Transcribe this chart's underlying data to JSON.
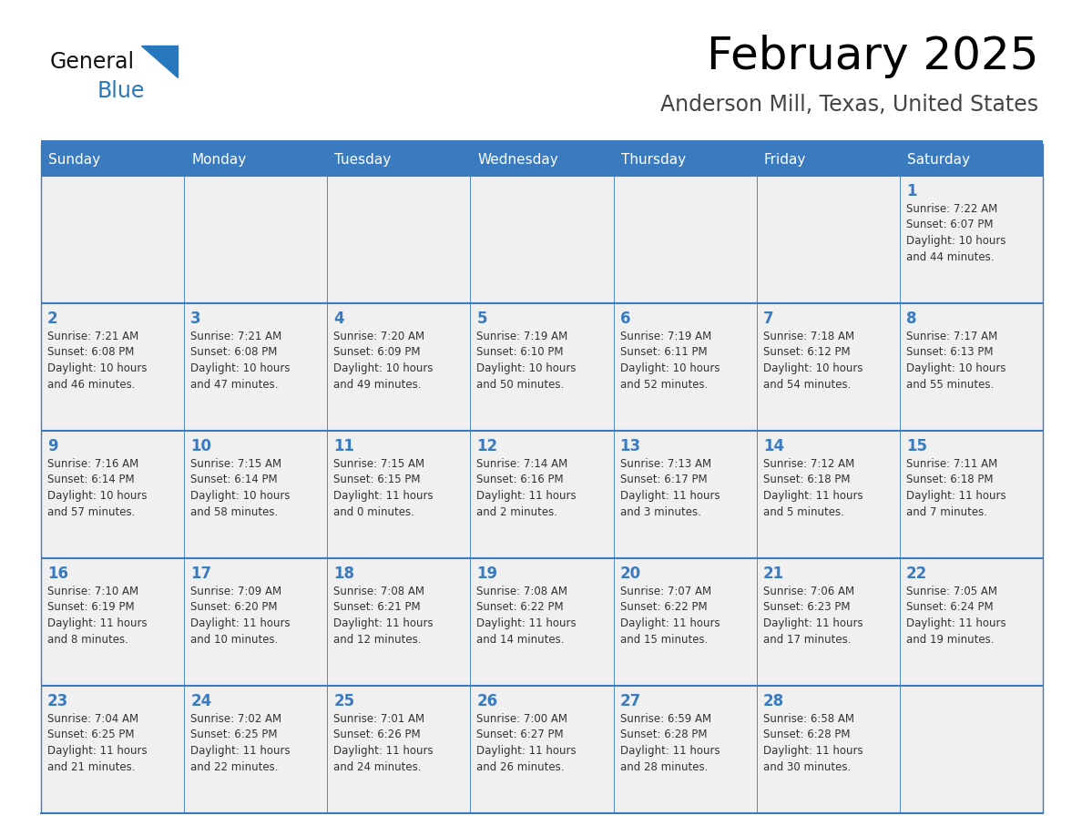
{
  "title": "February 2025",
  "subtitle": "Anderson Mill, Texas, United States",
  "days_of_week": [
    "Sunday",
    "Monday",
    "Tuesday",
    "Wednesday",
    "Thursday",
    "Friday",
    "Saturday"
  ],
  "header_bg": "#3a7bbf",
  "header_text": "#ffffff",
  "cell_bg": "#f0f0f0",
  "day_num_color": "#3a7bbf",
  "text_color": "#333333",
  "border_color": "#3a7bbf",
  "logo_general_color": "#111111",
  "logo_blue_color": "#2878be",
  "weeks": [
    [
      {
        "day": null,
        "info": null
      },
      {
        "day": null,
        "info": null
      },
      {
        "day": null,
        "info": null
      },
      {
        "day": null,
        "info": null
      },
      {
        "day": null,
        "info": null
      },
      {
        "day": null,
        "info": null
      },
      {
        "day": 1,
        "info": "Sunrise: 7:22 AM\nSunset: 6:07 PM\nDaylight: 10 hours\nand 44 minutes."
      }
    ],
    [
      {
        "day": 2,
        "info": "Sunrise: 7:21 AM\nSunset: 6:08 PM\nDaylight: 10 hours\nand 46 minutes."
      },
      {
        "day": 3,
        "info": "Sunrise: 7:21 AM\nSunset: 6:08 PM\nDaylight: 10 hours\nand 47 minutes."
      },
      {
        "day": 4,
        "info": "Sunrise: 7:20 AM\nSunset: 6:09 PM\nDaylight: 10 hours\nand 49 minutes."
      },
      {
        "day": 5,
        "info": "Sunrise: 7:19 AM\nSunset: 6:10 PM\nDaylight: 10 hours\nand 50 minutes."
      },
      {
        "day": 6,
        "info": "Sunrise: 7:19 AM\nSunset: 6:11 PM\nDaylight: 10 hours\nand 52 minutes."
      },
      {
        "day": 7,
        "info": "Sunrise: 7:18 AM\nSunset: 6:12 PM\nDaylight: 10 hours\nand 54 minutes."
      },
      {
        "day": 8,
        "info": "Sunrise: 7:17 AM\nSunset: 6:13 PM\nDaylight: 10 hours\nand 55 minutes."
      }
    ],
    [
      {
        "day": 9,
        "info": "Sunrise: 7:16 AM\nSunset: 6:14 PM\nDaylight: 10 hours\nand 57 minutes."
      },
      {
        "day": 10,
        "info": "Sunrise: 7:15 AM\nSunset: 6:14 PM\nDaylight: 10 hours\nand 58 minutes."
      },
      {
        "day": 11,
        "info": "Sunrise: 7:15 AM\nSunset: 6:15 PM\nDaylight: 11 hours\nand 0 minutes."
      },
      {
        "day": 12,
        "info": "Sunrise: 7:14 AM\nSunset: 6:16 PM\nDaylight: 11 hours\nand 2 minutes."
      },
      {
        "day": 13,
        "info": "Sunrise: 7:13 AM\nSunset: 6:17 PM\nDaylight: 11 hours\nand 3 minutes."
      },
      {
        "day": 14,
        "info": "Sunrise: 7:12 AM\nSunset: 6:18 PM\nDaylight: 11 hours\nand 5 minutes."
      },
      {
        "day": 15,
        "info": "Sunrise: 7:11 AM\nSunset: 6:18 PM\nDaylight: 11 hours\nand 7 minutes."
      }
    ],
    [
      {
        "day": 16,
        "info": "Sunrise: 7:10 AM\nSunset: 6:19 PM\nDaylight: 11 hours\nand 8 minutes."
      },
      {
        "day": 17,
        "info": "Sunrise: 7:09 AM\nSunset: 6:20 PM\nDaylight: 11 hours\nand 10 minutes."
      },
      {
        "day": 18,
        "info": "Sunrise: 7:08 AM\nSunset: 6:21 PM\nDaylight: 11 hours\nand 12 minutes."
      },
      {
        "day": 19,
        "info": "Sunrise: 7:08 AM\nSunset: 6:22 PM\nDaylight: 11 hours\nand 14 minutes."
      },
      {
        "day": 20,
        "info": "Sunrise: 7:07 AM\nSunset: 6:22 PM\nDaylight: 11 hours\nand 15 minutes."
      },
      {
        "day": 21,
        "info": "Sunrise: 7:06 AM\nSunset: 6:23 PM\nDaylight: 11 hours\nand 17 minutes."
      },
      {
        "day": 22,
        "info": "Sunrise: 7:05 AM\nSunset: 6:24 PM\nDaylight: 11 hours\nand 19 minutes."
      }
    ],
    [
      {
        "day": 23,
        "info": "Sunrise: 7:04 AM\nSunset: 6:25 PM\nDaylight: 11 hours\nand 21 minutes."
      },
      {
        "day": 24,
        "info": "Sunrise: 7:02 AM\nSunset: 6:25 PM\nDaylight: 11 hours\nand 22 minutes."
      },
      {
        "day": 25,
        "info": "Sunrise: 7:01 AM\nSunset: 6:26 PM\nDaylight: 11 hours\nand 24 minutes."
      },
      {
        "day": 26,
        "info": "Sunrise: 7:00 AM\nSunset: 6:27 PM\nDaylight: 11 hours\nand 26 minutes."
      },
      {
        "day": 27,
        "info": "Sunrise: 6:59 AM\nSunset: 6:28 PM\nDaylight: 11 hours\nand 28 minutes."
      },
      {
        "day": 28,
        "info": "Sunrise: 6:58 AM\nSunset: 6:28 PM\nDaylight: 11 hours\nand 30 minutes."
      },
      {
        "day": null,
        "info": null
      }
    ]
  ],
  "fig_width": 11.88,
  "fig_height": 9.18,
  "dpi": 100
}
